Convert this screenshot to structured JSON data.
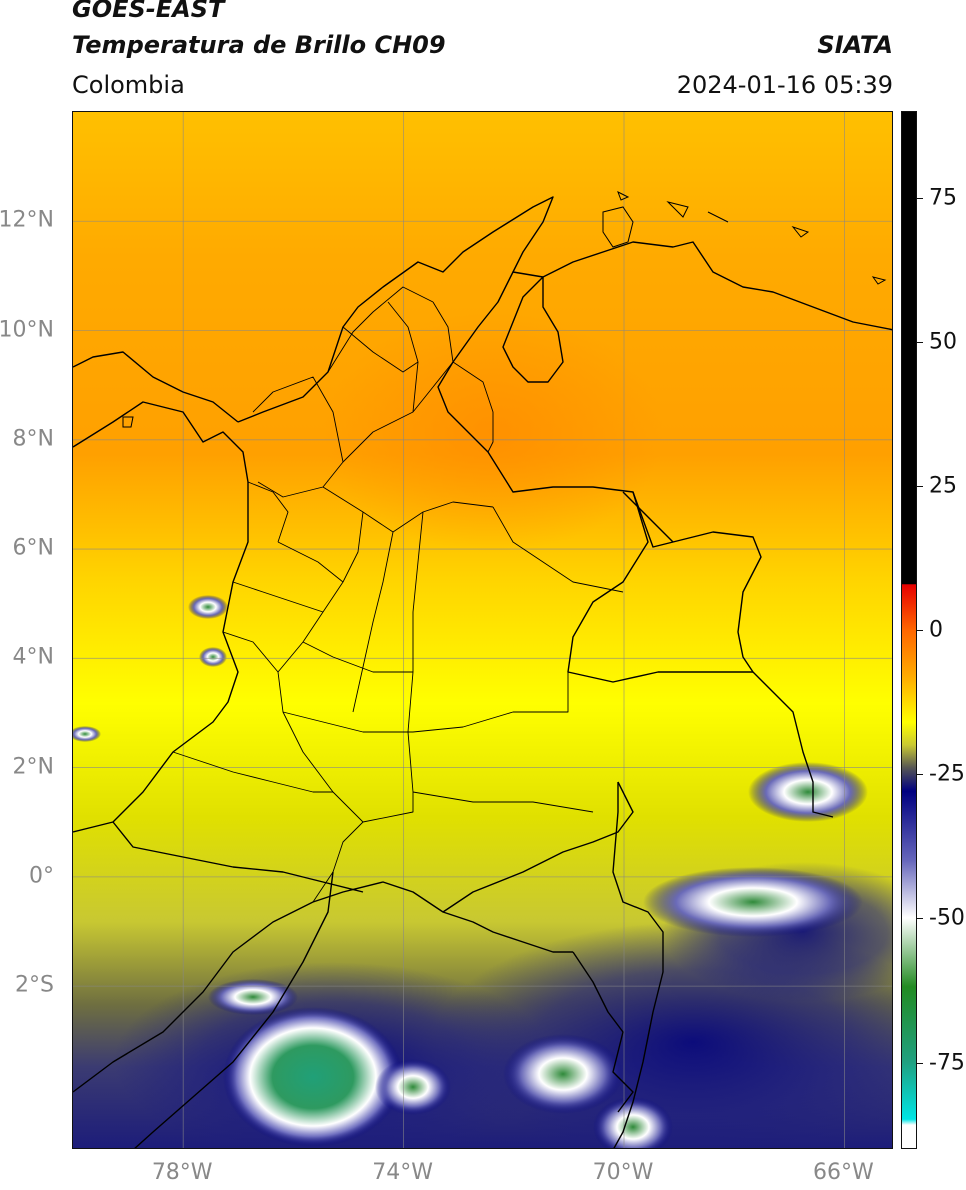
{
  "header": {
    "satellite": "GOES-EAST",
    "product": "Temperatura de Brillo CH09",
    "organization": "SIATA",
    "region": "Colombia",
    "timestamp": "2024-01-16 05:39"
  },
  "map": {
    "projection": "PlateCarree",
    "lon_range": [
      -80,
      -65.1
    ],
    "lat_range": [
      -5.0,
      14.0
    ],
    "grid": true,
    "lat_ticks": [
      {
        "value": 12,
        "label": "12°N"
      },
      {
        "value": 10,
        "label": "10°N"
      },
      {
        "value": 8,
        "label": "8°N"
      },
      {
        "value": 6,
        "label": "6°N"
      },
      {
        "value": 4,
        "label": "4°N"
      },
      {
        "value": 2,
        "label": "2°N"
      },
      {
        "value": 0,
        "label": "0°"
      },
      {
        "value": -2,
        "label": "2°S"
      }
    ],
    "lon_ticks": [
      {
        "value": -78,
        "label": "78°W"
      },
      {
        "value": -74,
        "label": "74°W"
      },
      {
        "value": -70,
        "label": "70°W"
      },
      {
        "value": -66,
        "label": "66°W"
      }
    ],
    "features": [
      "coastlines",
      "country-borders",
      "department-borders"
    ]
  },
  "colorbar": {
    "range": [
      -90,
      90
    ],
    "ticks": [
      {
        "value": 75,
        "label": "75"
      },
      {
        "value": 50,
        "label": "50"
      },
      {
        "value": 25,
        "label": "25"
      },
      {
        "value": 0,
        "label": "0"
      },
      {
        "value": -25,
        "label": "-25"
      },
      {
        "value": -50,
        "label": "-50"
      },
      {
        "value": -75,
        "label": "-75"
      }
    ],
    "stops": [
      {
        "value": 90,
        "color": "#000000"
      },
      {
        "value": 8,
        "color": "#000000"
      },
      {
        "value": 7.9,
        "color": "#e60000"
      },
      {
        "value": 0,
        "color": "#ff6600"
      },
      {
        "value": -8,
        "color": "#ffaa00"
      },
      {
        "value": -16,
        "color": "#ffff00"
      },
      {
        "value": -20,
        "color": "#c8c832"
      },
      {
        "value": -24,
        "color": "#555555"
      },
      {
        "value": -28,
        "color": "#000080"
      },
      {
        "value": -40,
        "color": "#6666bb"
      },
      {
        "value": -50,
        "color": "#ffffff"
      },
      {
        "value": -62,
        "color": "#228b22"
      },
      {
        "value": -75,
        "color": "#20a080"
      },
      {
        "value": -85,
        "color": "#00e5e5"
      },
      {
        "value": -86,
        "color": "#ffffff"
      },
      {
        "value": -90,
        "color": "#ffffff"
      }
    ]
  }
}
